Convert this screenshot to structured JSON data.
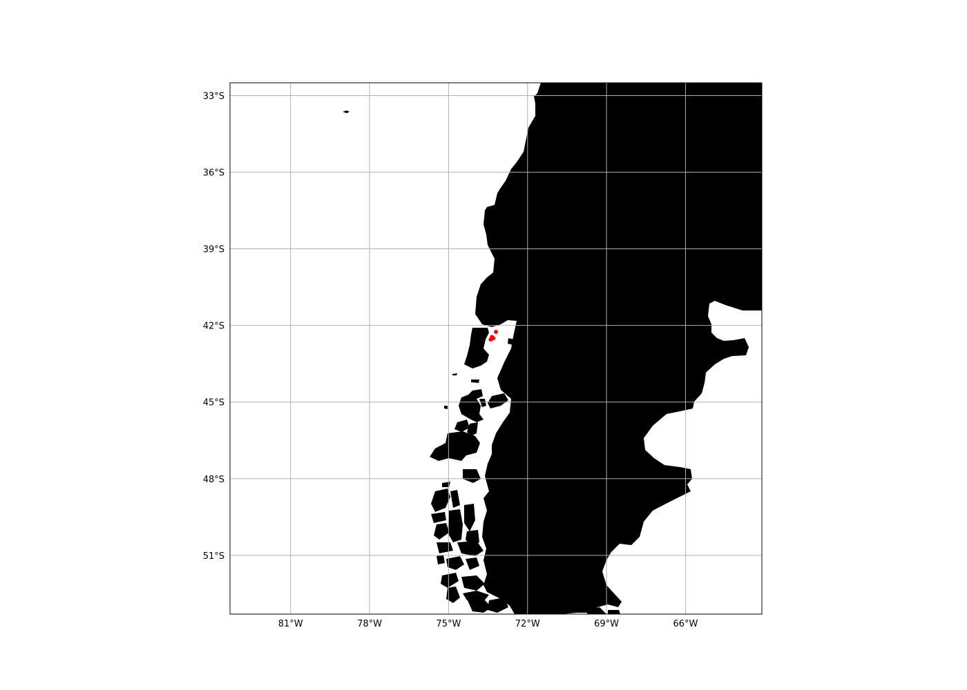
{
  "map": {
    "projection": "PlateCarree",
    "extent": {
      "lon": [
        -83.3,
        -63.1
      ],
      "lat": [
        -53.3,
        -32.5
      ]
    },
    "land_color": "#000000",
    "ocean_color": "#ffffff",
    "grid": true,
    "grid_color": "#b0b0b0",
    "lon_ticks": [
      {
        "value": -81,
        "label": "81°W"
      },
      {
        "value": -78,
        "label": "78°W"
      },
      {
        "value": -75,
        "label": "75°W"
      },
      {
        "value": -72,
        "label": "72°W"
      },
      {
        "value": -69,
        "label": "69°W"
      },
      {
        "value": -66,
        "label": "66°W"
      }
    ],
    "lat_ticks": [
      {
        "value": -33,
        "label": "33°S"
      },
      {
        "value": -36,
        "label": "36°S"
      },
      {
        "value": -39,
        "label": "39°S"
      },
      {
        "value": -42,
        "label": "42°S"
      },
      {
        "value": -45,
        "label": "45°S"
      },
      {
        "value": -48,
        "label": "48°S"
      },
      {
        "value": -51,
        "label": "51°S"
      }
    ],
    "markers": {
      "color": "#ff0000",
      "points": [
        {
          "lon": -73.2,
          "lat": -42.25
        },
        {
          "lon": -73.35,
          "lat": -42.45
        },
        {
          "lon": -73.4,
          "lat": -42.55
        },
        {
          "lon": -73.3,
          "lat": -42.5
        }
      ]
    }
  }
}
